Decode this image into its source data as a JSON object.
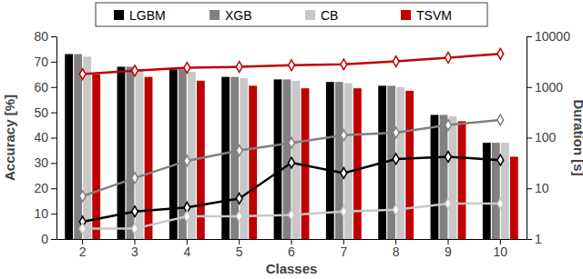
{
  "chart_data": {
    "type": "bar",
    "x_label": "Classes",
    "y_label": "Accuracy [%]",
    "y2_label": "Duration [s]",
    "categories": [
      "2",
      "3",
      "4",
      "5",
      "6",
      "7",
      "8",
      "9",
      "10"
    ],
    "ylim": [
      0,
      80
    ],
    "yticks": [
      0,
      10,
      20,
      30,
      40,
      50,
      60,
      70,
      80
    ],
    "y2lim": [
      1,
      10000
    ],
    "y2ticks": [
      1,
      10,
      100,
      1000,
      10000
    ],
    "log": "y2",
    "legend": "top",
    "marker": "diamond",
    "series": [
      {
        "name": "LGBM",
        "color": "#000000",
        "values": [
          73,
          68,
          67,
          64,
          63,
          62,
          60.5,
          49,
          38
        ],
        "duration": [
          2.2,
          3.5,
          4.2,
          6.3,
          32,
          20,
          38,
          42,
          36
        ]
      },
      {
        "name": "XGB",
        "color": "#808080",
        "values": [
          73,
          68,
          67,
          64,
          63,
          62,
          60.5,
          49,
          38
        ],
        "duration": [
          7,
          16,
          35,
          56,
          79,
          112,
          126,
          178,
          224
        ]
      },
      {
        "name": "CB",
        "color": "#c8c8c8",
        "values": [
          72,
          67,
          66,
          63.5,
          62.5,
          61.5,
          60,
          48.5,
          38
        ],
        "duration": [
          1.6,
          1.6,
          2.8,
          2.8,
          3,
          3.5,
          3.8,
          5,
          5
        ]
      },
      {
        "name": "TSVM",
        "color": "#c00000",
        "values": [
          65,
          64,
          62.5,
          60.5,
          59.5,
          59.5,
          58.5,
          46.5,
          32.5
        ],
        "duration": [
          1800,
          2100,
          2400,
          2500,
          2700,
          2800,
          3200,
          3800,
          4500
        ]
      }
    ]
  }
}
